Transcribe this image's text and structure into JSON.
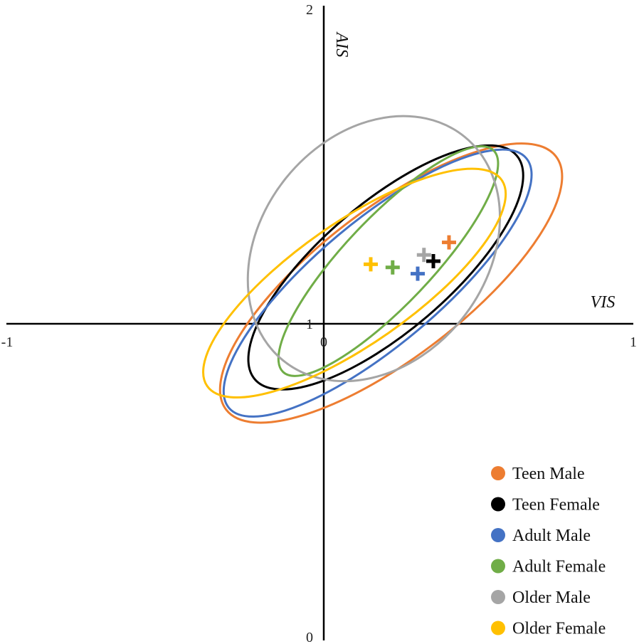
{
  "chart_data": {
    "type": "scatter",
    "title": "",
    "xlabel": "VIS",
    "ylabel": "AIS",
    "xlim": [
      -1,
      1
    ],
    "ylim": [
      0,
      2
    ],
    "x_ticks": [
      "-1",
      "0",
      "1"
    ],
    "y_ticks": [
      "0",
      "1",
      "2"
    ],
    "grid": false,
    "legend_position": "bottom-right",
    "series": [
      {
        "name": "Teen Male",
        "color": "#ED7D31",
        "mean": [
          0.4,
          1.26
        ],
        "ellipse": {
          "cx": 0.215,
          "cy": 1.13,
          "rx": 0.664,
          "ry": 0.237,
          "angle_deg": 37.5
        }
      },
      {
        "name": "Teen Female",
        "color": "#000000",
        "mean": [
          0.35,
          1.2
        ],
        "ellipse": {
          "cx": 0.198,
          "cy": 1.18,
          "rx": 0.55,
          "ry": 0.205,
          "angle_deg": 40.5
        }
      },
      {
        "name": "Adult Male",
        "color": "#4472C4",
        "mean": [
          0.3,
          1.16
        ],
        "ellipse": {
          "cx": 0.172,
          "cy": 1.13,
          "rx": 0.62,
          "ry": 0.198,
          "angle_deg": 40.0
        }
      },
      {
        "name": "Adult Female",
        "color": "#70AD47",
        "mean": [
          0.22,
          1.18
        ],
        "ellipse": {
          "cx": 0.206,
          "cy": 1.2,
          "rx": 0.488,
          "ry": 0.139,
          "angle_deg": 46.5
        }
      },
      {
        "name": "Older Male",
        "color": "#A5A5A5",
        "mean": [
          0.32,
          1.22
        ],
        "ellipse": {
          "cx": 0.16,
          "cy": 1.24,
          "rx": 0.46,
          "ry": 0.36,
          "angle_deg": 51.0
        }
      },
      {
        "name": "Older Female",
        "color": "#FFC000",
        "mean": [
          0.15,
          1.19
        ],
        "ellipse": {
          "cx": 0.098,
          "cy": 1.13,
          "rx": 0.574,
          "ry": 0.193,
          "angle_deg": 35.0
        }
      }
    ]
  }
}
